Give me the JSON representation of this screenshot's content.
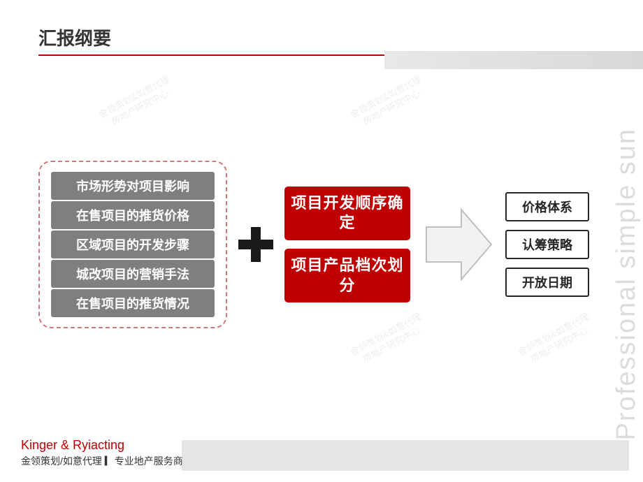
{
  "page_title": "汇报纲要",
  "side_text": "Professional simple sun",
  "colors": {
    "accent_red": "#c00000",
    "pill_gray": "#7f7f7f",
    "border_dashed": "#c97a7a",
    "plus_black": "#1a1a1a",
    "arrow_fill": "#f2f2f2",
    "arrow_stroke": "#bfbfbf",
    "side_text_color": "#dcdcdc",
    "footer_gray": "#e6e6e6"
  },
  "left_items": [
    "市场形势对项目影响",
    "在售项目的推货价格",
    "区域项目的开发步骤",
    "城改项目的营销手法",
    "在售项目的推货情况"
  ],
  "mid_items": [
    "项目开发顺序确定",
    "项目产品档次划分"
  ],
  "right_items": [
    "价格体系",
    "认筹策略",
    "开放日期"
  ],
  "footer": {
    "line1": "Kinger & Ryiacting",
    "line2": "金领策划/如意代理 ▎专业地产服务商"
  },
  "watermark": "金领策划&如意代理\n房地产研究中心"
}
